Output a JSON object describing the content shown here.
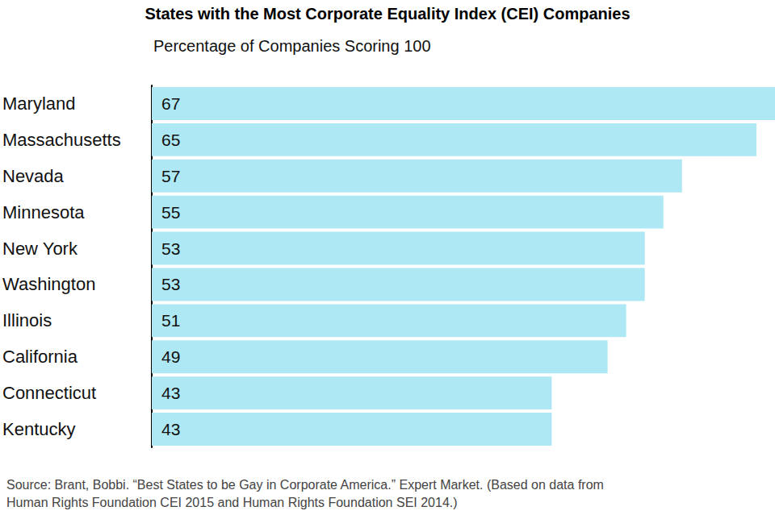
{
  "chart_data": {
    "type": "bar",
    "title": "States with the Most Corporate Equality Index (CEI) Companies",
    "subtitle": "Percentage of Companies Scoring 100",
    "categories": [
      "Maryland",
      "Massachusetts",
      "Nevada",
      "Minnesota",
      "New York",
      "Washington",
      "Illinois",
      "California",
      "Connecticut",
      "Kentucky"
    ],
    "values": [
      67,
      65,
      57,
      55,
      53,
      53,
      51,
      49,
      43,
      43
    ],
    "color": "#ade8f4",
    "orientation": "horizontal",
    "data_labels": true,
    "tick_labels": "y",
    "grid": false,
    "xlim": [
      0,
      67
    ],
    "source": [
      "Source: Brant, Bobbi. “Best States to be Gay in Corporate America.” Expert Market. (Based on data from",
      "Human Rights Foundation CEI 2015 and Human Rights Foundation SEI 2014.)"
    ]
  }
}
